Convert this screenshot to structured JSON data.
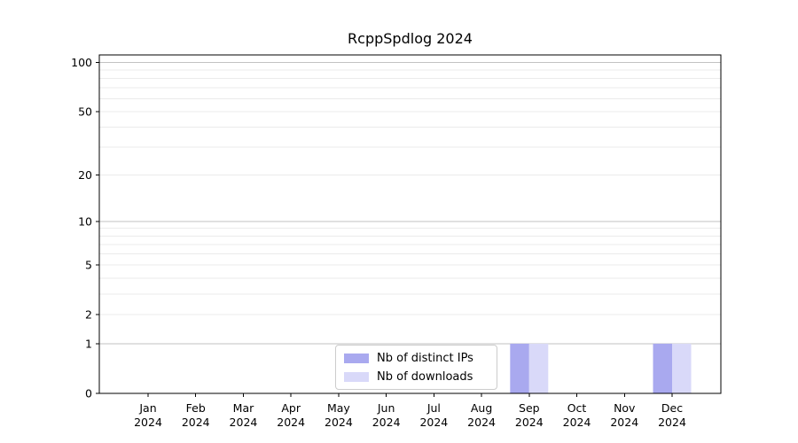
{
  "chart_data": {
    "type": "bar",
    "title": "RcppSpdlog 2024",
    "categories": [
      "Jan",
      "Feb",
      "Mar",
      "Apr",
      "May",
      "Jun",
      "Jul",
      "Aug",
      "Sep",
      "Oct",
      "Nov",
      "Dec"
    ],
    "year_label": "2024",
    "series": [
      {
        "name": "Nb of distinct IPs",
        "color": "#a9a9ef",
        "values": [
          0,
          0,
          0,
          0,
          0,
          0,
          0,
          0,
          1,
          0,
          0,
          1
        ]
      },
      {
        "name": "Nb of downloads",
        "color": "#d9d9f9",
        "values": [
          0,
          0,
          0,
          0,
          0,
          0,
          0,
          0,
          1,
          0,
          0,
          1
        ]
      }
    ],
    "xlabel": "",
    "ylabel": "",
    "yscale": "log1p",
    "ylim": [
      0,
      110
    ],
    "yticks": [
      0,
      1,
      2,
      5,
      10,
      20,
      50,
      100
    ],
    "grid": "on",
    "grid_major_values": [
      1,
      10,
      100
    ],
    "grid_minor_values": [
      2,
      3,
      4,
      5,
      6,
      7,
      8,
      9,
      20,
      30,
      40,
      50,
      60,
      70,
      80,
      90
    ],
    "legend_position": "inside-bottom-center",
    "colors": {
      "grid_major": "#c2c2c2",
      "grid_minor": "#ebebeb",
      "spine": "#000000",
      "text": "#000000",
      "background": "#ffffff"
    }
  }
}
